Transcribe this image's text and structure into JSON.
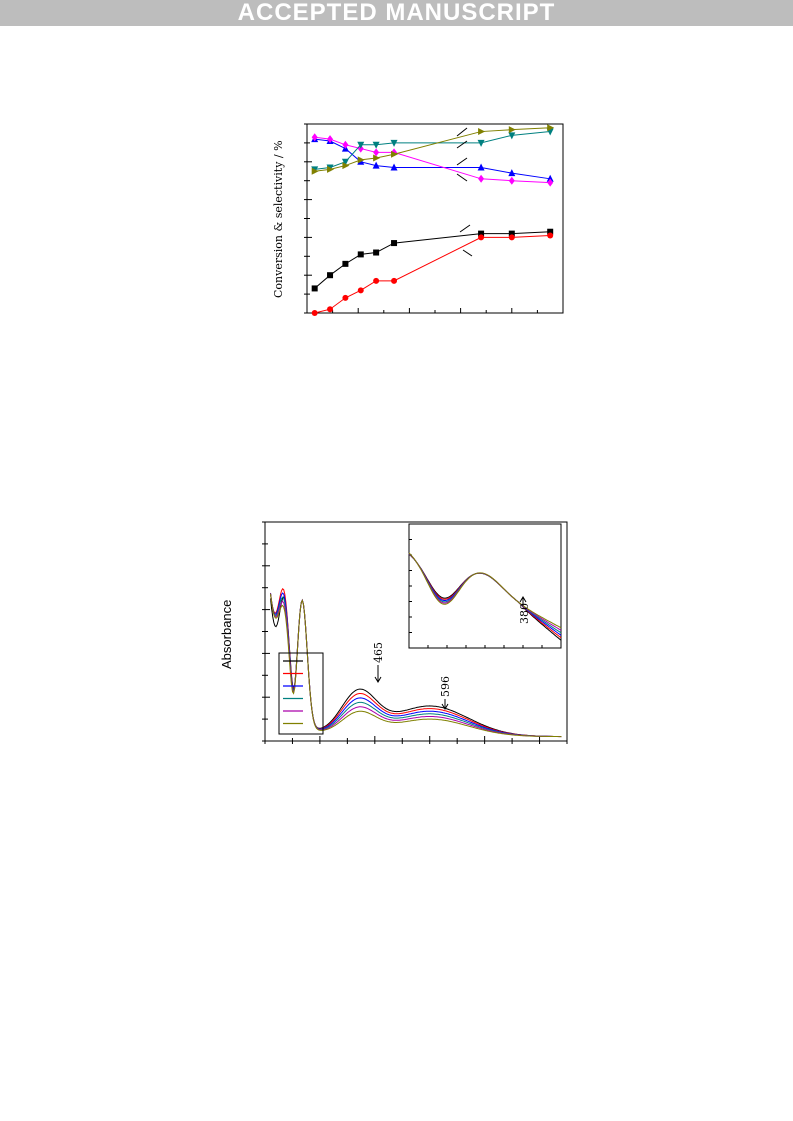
{
  "banner": {
    "text": "ACCEPTED MANUSCRIPT"
  },
  "chart_data": [
    {
      "type": "line",
      "title": "",
      "xlabel": "",
      "ylabel": "Conversion & selectivity / %",
      "xlim": [
        0,
        10
      ],
      "ylim": [
        0,
        100
      ],
      "x": [
        0.3,
        0.9,
        1.5,
        2.1,
        2.7,
        3.4,
        6.8,
        8.0,
        9.5
      ],
      "series": [
        {
          "color": "#000000",
          "marker": "square",
          "values": [
            13,
            20,
            26,
            31,
            32,
            37,
            42,
            42,
            43
          ]
        },
        {
          "color": "#ff0000",
          "marker": "circle",
          "values": [
            0,
            2,
            8,
            12,
            17,
            17,
            40,
            40,
            41
          ]
        },
        {
          "color": "#0000ff",
          "marker": "triangle-up",
          "values": [
            92,
            91,
            87,
            80,
            78,
            77,
            77,
            74,
            71
          ]
        },
        {
          "color": "#ff00ff",
          "marker": "diamond",
          "values": [
            93,
            92,
            89,
            87,
            85,
            85,
            71,
            70,
            69
          ]
        },
        {
          "color": "#008080",
          "marker": "triangle-down",
          "values": [
            76,
            77,
            80,
            89,
            89,
            90,
            90,
            94,
            96
          ]
        },
        {
          "color": "#808000",
          "marker": "triangle-right",
          "values": [
            75,
            76,
            78,
            81,
            82,
            84,
            96,
            97,
            98
          ]
        }
      ]
    },
    {
      "type": "line",
      "title": "",
      "xlabel": "",
      "ylabel": "Absorbance",
      "xlim": [
        300,
        850
      ],
      "ylim": [
        0,
        1
      ],
      "annotations": [
        "465",
        "596"
      ],
      "inset_annotation": "380",
      "series": [
        {
          "color": "#000000"
        },
        {
          "color": "#ff0000"
        },
        {
          "color": "#0000ff"
        },
        {
          "color": "#008080"
        },
        {
          "color": "#aa00aa"
        },
        {
          "color": "#808000"
        }
      ]
    }
  ]
}
